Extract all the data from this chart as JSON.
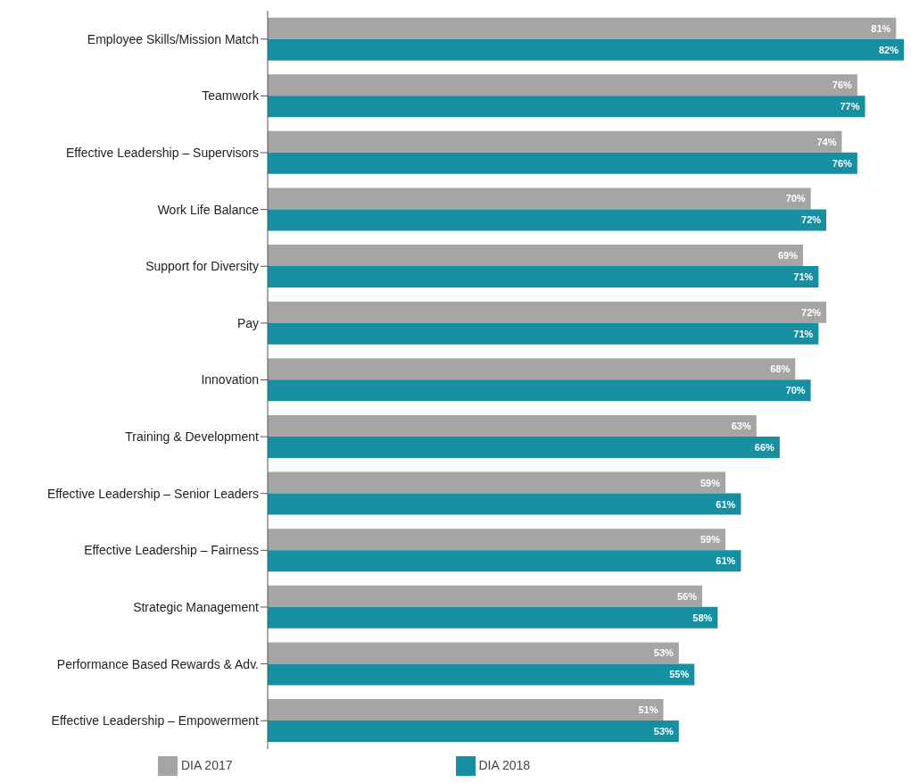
{
  "chart_data": {
    "type": "bar",
    "orientation": "horizontal",
    "categories": [
      "Employee Skills/Mission Match",
      "Teamwork",
      "Effective Leadership – Supervisors",
      "Work Life Balance",
      "Support for Diversity",
      "Pay",
      "Innovation",
      "Training & Development",
      "Effective Leadership – Senior Leaders",
      "Effective Leadership – Fairness",
      "Strategic Management",
      "Performance Based Rewards & Adv.",
      "Effective Leadership – Empowerment"
    ],
    "series": [
      {
        "name": "DIA 2017",
        "color": "#a5a5a5",
        "values": [
          81,
          76,
          74,
          70,
          69,
          72,
          68,
          63,
          59,
          59,
          56,
          53,
          51
        ],
        "value_labels": [
          "81%",
          "76%",
          "74%",
          "70%",
          "69%",
          "72%",
          "68%",
          "63%",
          "59%",
          "59%",
          "56%",
          "53%",
          "51%"
        ]
      },
      {
        "name": "DIA 2018",
        "color": "#168fa0",
        "values": [
          82,
          77,
          76,
          72,
          71,
          71,
          70,
          66,
          61,
          61,
          58,
          55,
          53
        ],
        "value_labels": [
          "82%",
          "77%",
          "76%",
          "72%",
          "71%",
          "71%",
          "70%",
          "66%",
          "61%",
          "61%",
          "58%",
          "55%",
          "53%"
        ]
      }
    ],
    "legend": "bottom",
    "grid": false
  }
}
